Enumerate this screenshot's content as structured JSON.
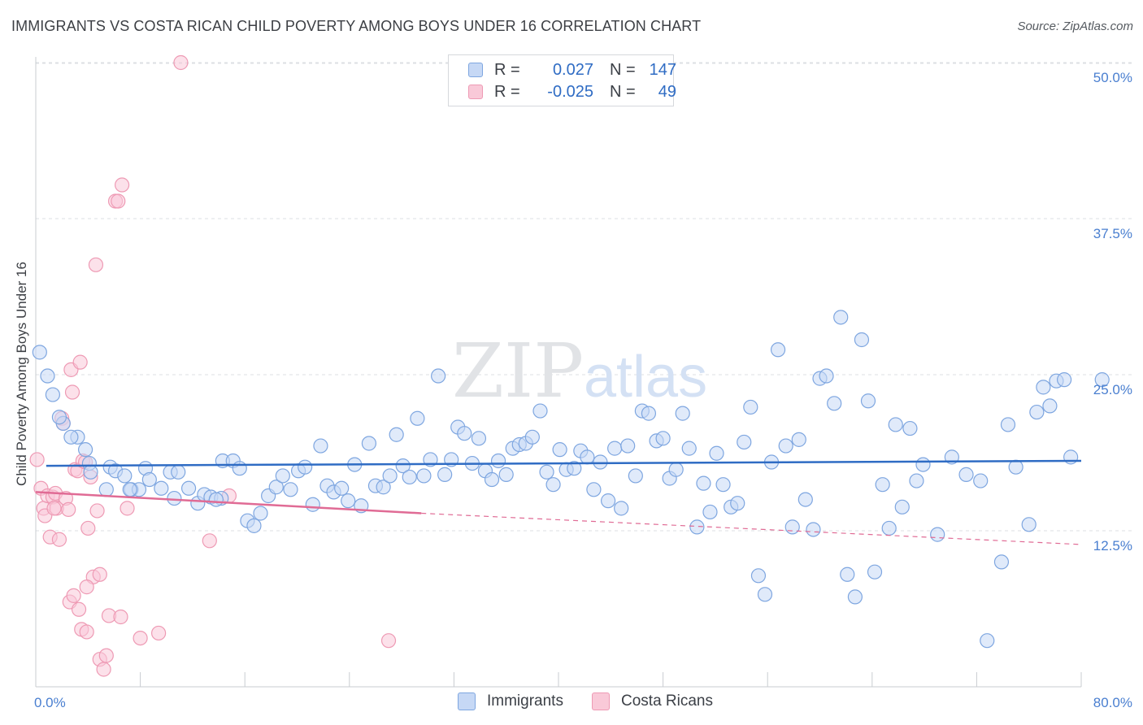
{
  "title": "IMMIGRANTS VS COSTA RICAN CHILD POVERTY AMONG BOYS UNDER 16 CORRELATION CHART",
  "source": "Source: ZipAtlas.com",
  "watermark": {
    "zip": "ZIP",
    "atlas": "atlas"
  },
  "legend": {
    "rows": [
      {
        "r_label": "R =",
        "r_value": "0.027",
        "n_label": "N =",
        "n_value": "147"
      },
      {
        "r_label": "R =",
        "r_value": "-0.025",
        "n_label": "N =",
        "n_value": "49"
      }
    ]
  },
  "colors": {
    "blue": "#7ea6e0",
    "blue_fill": "#c6d8f5",
    "blue_line": "#2f6cc4",
    "pink": "#ee9ab4",
    "pink_fill": "#f9c9d8",
    "pink_line": "#e06b95",
    "axis_label": "#4a7fd0"
  },
  "chart_data": {
    "type": "scatter",
    "title": "IMMIGRANTS VS COSTA RICAN CHILD POVERTY AMONG BOYS UNDER 16 CORRELATION CHART",
    "xlabel": "",
    "ylabel": "Child Poverty Among Boys Under 16",
    "xlim": [
      0,
      80
    ],
    "ylim": [
      0,
      52
    ],
    "x_tick_labels": [
      "0.0%",
      "80.0%"
    ],
    "y_ticks": [
      12.5,
      25.0,
      37.5,
      50.0
    ],
    "y_tick_labels": [
      "12.5%",
      "25.0%",
      "37.5%",
      "50.0%"
    ],
    "grid": "horizontal dashed",
    "legend_position": "top-center",
    "series": [
      {
        "name": "Immigrants",
        "color": "#7ea6e0",
        "trend": {
          "x0": 0.8,
          "y0": 17.7,
          "x1": 80,
          "y1": 18.1
        },
        "points": [
          [
            0.3,
            26.8
          ],
          [
            0.9,
            24.9
          ],
          [
            1.3,
            23.4
          ],
          [
            2.1,
            21.1
          ],
          [
            1.8,
            21.6
          ],
          [
            3.2,
            20.0
          ],
          [
            2.7,
            20.0
          ],
          [
            3.8,
            19.0
          ],
          [
            4.1,
            17.9
          ],
          [
            5.7,
            17.6
          ],
          [
            6.1,
            17.3
          ],
          [
            6.8,
            16.9
          ],
          [
            8.4,
            17.5
          ],
          [
            8.7,
            16.6
          ],
          [
            10.3,
            17.2
          ],
          [
            10.9,
            17.2
          ],
          [
            9.6,
            15.9
          ],
          [
            7.3,
            15.8
          ],
          [
            7.9,
            15.8
          ],
          [
            5.4,
            15.8
          ],
          [
            4.2,
            17.2
          ],
          [
            11.7,
            15.9
          ],
          [
            12.4,
            14.7
          ],
          [
            12.9,
            15.4
          ],
          [
            13.4,
            15.2
          ],
          [
            14.2,
            15.1
          ],
          [
            13.8,
            15.0
          ],
          [
            10.6,
            15.1
          ],
          [
            14.3,
            18.1
          ],
          [
            15.1,
            18.1
          ],
          [
            15.6,
            17.5
          ],
          [
            16.2,
            13.3
          ],
          [
            16.7,
            12.9
          ],
          [
            17.2,
            13.9
          ],
          [
            17.8,
            15.3
          ],
          [
            18.4,
            16.0
          ],
          [
            18.9,
            16.9
          ],
          [
            19.5,
            15.8
          ],
          [
            20.1,
            17.3
          ],
          [
            20.6,
            17.6
          ],
          [
            21.2,
            14.6
          ],
          [
            21.8,
            19.3
          ],
          [
            22.3,
            16.1
          ],
          [
            22.8,
            15.6
          ],
          [
            23.4,
            15.9
          ],
          [
            23.9,
            14.9
          ],
          [
            24.4,
            17.8
          ],
          [
            24.9,
            14.5
          ],
          [
            25.5,
            19.5
          ],
          [
            26.0,
            16.1
          ],
          [
            26.6,
            16.0
          ],
          [
            27.1,
            16.9
          ],
          [
            27.6,
            20.2
          ],
          [
            28.1,
            17.7
          ],
          [
            28.6,
            16.8
          ],
          [
            29.2,
            21.5
          ],
          [
            29.7,
            16.9
          ],
          [
            30.2,
            18.2
          ],
          [
            30.8,
            24.9
          ],
          [
            31.3,
            17.0
          ],
          [
            31.8,
            18.2
          ],
          [
            32.3,
            20.8
          ],
          [
            32.8,
            20.3
          ],
          [
            33.4,
            17.9
          ],
          [
            33.9,
            19.9
          ],
          [
            34.4,
            17.3
          ],
          [
            34.9,
            16.6
          ],
          [
            35.4,
            18.1
          ],
          [
            36.0,
            17.0
          ],
          [
            36.5,
            19.1
          ],
          [
            37.0,
            19.4
          ],
          [
            37.5,
            19.5
          ],
          [
            38.0,
            20.0
          ],
          [
            38.6,
            22.1
          ],
          [
            39.1,
            17.2
          ],
          [
            39.6,
            16.2
          ],
          [
            40.1,
            19.0
          ],
          [
            40.6,
            17.4
          ],
          [
            41.2,
            17.5
          ],
          [
            41.7,
            18.9
          ],
          [
            42.2,
            18.4
          ],
          [
            42.7,
            15.8
          ],
          [
            43.2,
            18.0
          ],
          [
            43.8,
            14.9
          ],
          [
            44.3,
            19.1
          ],
          [
            44.8,
            14.3
          ],
          [
            45.3,
            19.3
          ],
          [
            45.9,
            16.9
          ],
          [
            46.4,
            22.1
          ],
          [
            46.9,
            21.9
          ],
          [
            47.5,
            19.7
          ],
          [
            48.0,
            19.9
          ],
          [
            48.5,
            16.7
          ],
          [
            49.0,
            17.4
          ],
          [
            49.5,
            21.9
          ],
          [
            50.0,
            19.1
          ],
          [
            50.6,
            12.8
          ],
          [
            51.1,
            16.3
          ],
          [
            51.6,
            14.0
          ],
          [
            52.1,
            18.7
          ],
          [
            52.6,
            16.2
          ],
          [
            53.2,
            14.4
          ],
          [
            53.7,
            14.7
          ],
          [
            54.2,
            19.6
          ],
          [
            54.7,
            22.4
          ],
          [
            55.3,
            8.9
          ],
          [
            55.8,
            7.4
          ],
          [
            56.3,
            18.0
          ],
          [
            56.8,
            27.0
          ],
          [
            57.4,
            19.3
          ],
          [
            57.9,
            12.8
          ],
          [
            58.4,
            19.8
          ],
          [
            58.9,
            15.0
          ],
          [
            59.5,
            12.6
          ],
          [
            60.0,
            24.7
          ],
          [
            60.5,
            24.9
          ],
          [
            61.1,
            22.7
          ],
          [
            61.6,
            29.6
          ],
          [
            62.1,
            9.0
          ],
          [
            62.7,
            7.2
          ],
          [
            63.2,
            27.8
          ],
          [
            63.7,
            22.9
          ],
          [
            64.2,
            9.2
          ],
          [
            64.8,
            16.2
          ],
          [
            65.3,
            12.7
          ],
          [
            65.8,
            21.0
          ],
          [
            66.3,
            14.4
          ],
          [
            66.9,
            20.7
          ],
          [
            67.4,
            16.5
          ],
          [
            67.9,
            17.8
          ],
          [
            69.0,
            12.2
          ],
          [
            70.1,
            18.4
          ],
          [
            71.2,
            17.0
          ],
          [
            72.3,
            16.5
          ],
          [
            72.8,
            3.7
          ],
          [
            73.9,
            10.0
          ],
          [
            74.4,
            21.0
          ],
          [
            75.0,
            17.6
          ],
          [
            76.0,
            13.0
          ],
          [
            76.6,
            22.0
          ],
          [
            77.1,
            24.0
          ],
          [
            77.6,
            22.5
          ],
          [
            78.1,
            24.5
          ],
          [
            78.7,
            24.6
          ],
          [
            79.2,
            18.4
          ],
          [
            81.6,
            24.6
          ],
          [
            7.2,
            15.8
          ]
        ]
      },
      {
        "name": "Costa Ricans",
        "color": "#ee9ab4",
        "trend": {
          "x0": 0,
          "y0": 15.6,
          "x1": 29.5,
          "y1": 13.9,
          "dash_to_x": 80,
          "dash_to_y": 11.4
        },
        "points": [
          [
            0.1,
            18.2
          ],
          [
            0.4,
            15.9
          ],
          [
            0.6,
            14.3
          ],
          [
            0.7,
            13.7
          ],
          [
            0.9,
            15.3
          ],
          [
            1.1,
            12.0
          ],
          [
            1.3,
            15.2
          ],
          [
            1.5,
            15.5
          ],
          [
            1.6,
            14.3
          ],
          [
            1.8,
            11.8
          ],
          [
            2.0,
            21.5
          ],
          [
            2.1,
            21.1
          ],
          [
            2.3,
            15.1
          ],
          [
            2.5,
            14.2
          ],
          [
            2.7,
            25.4
          ],
          [
            2.8,
            23.6
          ],
          [
            3.0,
            17.4
          ],
          [
            3.2,
            17.3
          ],
          [
            3.4,
            26.0
          ],
          [
            3.6,
            18.1
          ],
          [
            3.8,
            18.0
          ],
          [
            4.0,
            12.7
          ],
          [
            4.2,
            16.8
          ],
          [
            4.4,
            8.8
          ],
          [
            4.6,
            33.8
          ],
          [
            4.7,
            14.1
          ],
          [
            4.9,
            9.0
          ],
          [
            2.6,
            6.8
          ],
          [
            2.9,
            7.3
          ],
          [
            3.3,
            6.2
          ],
          [
            3.5,
            4.6
          ],
          [
            3.9,
            4.4
          ],
          [
            3.9,
            8.0
          ],
          [
            4.9,
            2.2
          ],
          [
            5.2,
            1.4
          ],
          [
            5.4,
            2.5
          ],
          [
            5.6,
            5.7
          ],
          [
            6.1,
            38.9
          ],
          [
            6.3,
            38.9
          ],
          [
            6.6,
            40.2
          ],
          [
            7.0,
            14.3
          ],
          [
            8.0,
            3.9
          ],
          [
            9.4,
            4.3
          ],
          [
            11.1,
            50.0
          ],
          [
            13.3,
            11.7
          ],
          [
            14.8,
            15.3
          ],
          [
            27.0,
            3.7
          ],
          [
            6.5,
            5.6
          ],
          [
            1.4,
            14.3
          ]
        ]
      }
    ]
  },
  "bottom_legend": [
    "Immigrants",
    "Costa Ricans"
  ]
}
